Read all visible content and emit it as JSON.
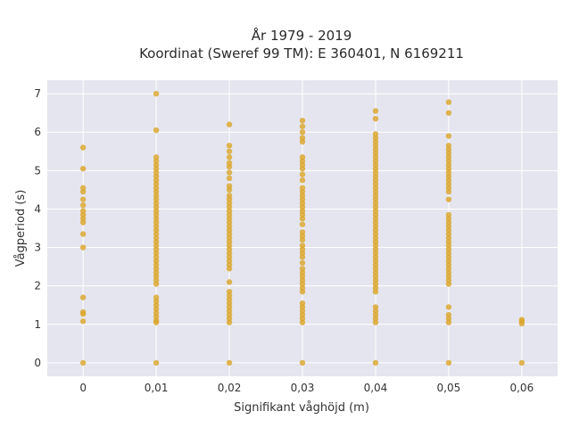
{
  "chart_data": {
    "type": "scatter",
    "title": [
      "År 1979 - 2019",
      "Koordinat (Sweref 99 TM): E 360401, N 6169211"
    ],
    "xlabel": "Signifikant våghöjd (m)",
    "ylabel": "Vågperiod (s)",
    "xlim": [
      -0.0049,
      0.0649
    ],
    "ylim": [
      -0.35,
      7.35
    ],
    "x_ticks": [
      0,
      0.01,
      0.02,
      0.03,
      0.04,
      0.05,
      0.06
    ],
    "x_tick_labels": [
      "0",
      "0,01",
      "0,02",
      "0,03",
      "0,04",
      "0,05",
      "0,06"
    ],
    "y_ticks": [
      0,
      1,
      2,
      3,
      4,
      5,
      6,
      7
    ],
    "y_tick_labels": [
      "0",
      "1",
      "2",
      "3",
      "4",
      "5",
      "6",
      "7"
    ],
    "grid": true,
    "background": "#e5e5ef",
    "marker_color": "#dba62b",
    "series": [
      {
        "points": [
          [
            0,
            0
          ],
          [
            0,
            1.08
          ],
          [
            0,
            1.27
          ],
          [
            0,
            1.32
          ],
          [
            0,
            1.7
          ],
          [
            0,
            3.0
          ],
          [
            0,
            3.35
          ],
          [
            0,
            3.65
          ],
          [
            0,
            3.75
          ],
          [
            0,
            3.85
          ],
          [
            0,
            3.95
          ],
          [
            0,
            4.1
          ],
          [
            0,
            4.25
          ],
          [
            0,
            4.45
          ],
          [
            0,
            4.55
          ],
          [
            0,
            5.05
          ],
          [
            0,
            5.6
          ],
          [
            0.01,
            0
          ],
          [
            0.01,
            1.05
          ],
          [
            0.01,
            1.1
          ],
          [
            0.01,
            1.2
          ],
          [
            0.01,
            1.3
          ],
          [
            0.01,
            1.4
          ],
          [
            0.01,
            1.5
          ],
          [
            0.01,
            1.6
          ],
          [
            0.01,
            1.7
          ],
          [
            0.01,
            2.05
          ],
          [
            0.01,
            2.15
          ],
          [
            0.01,
            2.25
          ],
          [
            0.01,
            2.35
          ],
          [
            0.01,
            2.45
          ],
          [
            0.01,
            2.55
          ],
          [
            0.01,
            2.65
          ],
          [
            0.01,
            2.75
          ],
          [
            0.01,
            2.85
          ],
          [
            0.01,
            2.95
          ],
          [
            0.01,
            3.05
          ],
          [
            0.01,
            3.15
          ],
          [
            0.01,
            3.25
          ],
          [
            0.01,
            3.35
          ],
          [
            0.01,
            3.45
          ],
          [
            0.01,
            3.55
          ],
          [
            0.01,
            3.65
          ],
          [
            0.01,
            3.75
          ],
          [
            0.01,
            3.85
          ],
          [
            0.01,
            3.95
          ],
          [
            0.01,
            4.05
          ],
          [
            0.01,
            4.15
          ],
          [
            0.01,
            4.25
          ],
          [
            0.01,
            4.35
          ],
          [
            0.01,
            4.45
          ],
          [
            0.01,
            4.55
          ],
          [
            0.01,
            4.65
          ],
          [
            0.01,
            4.75
          ],
          [
            0.01,
            4.85
          ],
          [
            0.01,
            4.95
          ],
          [
            0.01,
            5.05
          ],
          [
            0.01,
            5.15
          ],
          [
            0.01,
            5.25
          ],
          [
            0.01,
            5.35
          ],
          [
            0.01,
            6.05
          ],
          [
            0.01,
            7.0
          ],
          [
            0.02,
            0
          ],
          [
            0.02,
            1.05
          ],
          [
            0.02,
            1.15
          ],
          [
            0.02,
            1.25
          ],
          [
            0.02,
            1.35
          ],
          [
            0.02,
            1.45
          ],
          [
            0.02,
            1.55
          ],
          [
            0.02,
            1.65
          ],
          [
            0.02,
            1.75
          ],
          [
            0.02,
            1.85
          ],
          [
            0.02,
            2.1
          ],
          [
            0.02,
            2.45
          ],
          [
            0.02,
            2.55
          ],
          [
            0.02,
            2.65
          ],
          [
            0.02,
            2.75
          ],
          [
            0.02,
            2.85
          ],
          [
            0.02,
            2.95
          ],
          [
            0.02,
            3.05
          ],
          [
            0.02,
            3.15
          ],
          [
            0.02,
            3.25
          ],
          [
            0.02,
            3.35
          ],
          [
            0.02,
            3.45
          ],
          [
            0.02,
            3.55
          ],
          [
            0.02,
            3.65
          ],
          [
            0.02,
            3.75
          ],
          [
            0.02,
            3.85
          ],
          [
            0.02,
            3.95
          ],
          [
            0.02,
            4.05
          ],
          [
            0.02,
            4.15
          ],
          [
            0.02,
            4.25
          ],
          [
            0.02,
            4.35
          ],
          [
            0.02,
            4.5
          ],
          [
            0.02,
            4.6
          ],
          [
            0.02,
            4.8
          ],
          [
            0.02,
            4.95
          ],
          [
            0.02,
            5.1
          ],
          [
            0.02,
            5.2
          ],
          [
            0.02,
            5.35
          ],
          [
            0.02,
            5.5
          ],
          [
            0.02,
            5.65
          ],
          [
            0.02,
            6.2
          ],
          [
            0.03,
            0
          ],
          [
            0.03,
            1.05
          ],
          [
            0.03,
            1.15
          ],
          [
            0.03,
            1.25
          ],
          [
            0.03,
            1.35
          ],
          [
            0.03,
            1.45
          ],
          [
            0.03,
            1.55
          ],
          [
            0.03,
            1.85
          ],
          [
            0.03,
            1.95
          ],
          [
            0.03,
            2.05
          ],
          [
            0.03,
            2.15
          ],
          [
            0.03,
            2.25
          ],
          [
            0.03,
            2.35
          ],
          [
            0.03,
            2.45
          ],
          [
            0.03,
            2.6
          ],
          [
            0.03,
            2.75
          ],
          [
            0.03,
            2.85
          ],
          [
            0.03,
            2.95
          ],
          [
            0.03,
            3.05
          ],
          [
            0.03,
            3.2
          ],
          [
            0.03,
            3.3
          ],
          [
            0.03,
            3.4
          ],
          [
            0.03,
            3.6
          ],
          [
            0.03,
            3.75
          ],
          [
            0.03,
            3.85
          ],
          [
            0.03,
            3.95
          ],
          [
            0.03,
            4.05
          ],
          [
            0.03,
            4.15
          ],
          [
            0.03,
            4.25
          ],
          [
            0.03,
            4.35
          ],
          [
            0.03,
            4.45
          ],
          [
            0.03,
            4.55
          ],
          [
            0.03,
            4.75
          ],
          [
            0.03,
            4.9
          ],
          [
            0.03,
            5.05
          ],
          [
            0.03,
            5.15
          ],
          [
            0.03,
            5.25
          ],
          [
            0.03,
            5.35
          ],
          [
            0.03,
            5.75
          ],
          [
            0.03,
            5.85
          ],
          [
            0.03,
            6.0
          ],
          [
            0.03,
            6.15
          ],
          [
            0.03,
            6.3
          ],
          [
            0.04,
            0
          ],
          [
            0.04,
            1.05
          ],
          [
            0.04,
            1.15
          ],
          [
            0.04,
            1.25
          ],
          [
            0.04,
            1.35
          ],
          [
            0.04,
            1.45
          ],
          [
            0.04,
            1.85
          ],
          [
            0.04,
            1.95
          ],
          [
            0.04,
            2.05
          ],
          [
            0.04,
            2.15
          ],
          [
            0.04,
            2.25
          ],
          [
            0.04,
            2.35
          ],
          [
            0.04,
            2.45
          ],
          [
            0.04,
            2.55
          ],
          [
            0.04,
            2.65
          ],
          [
            0.04,
            2.75
          ],
          [
            0.04,
            2.85
          ],
          [
            0.04,
            2.95
          ],
          [
            0.04,
            3.05
          ],
          [
            0.04,
            3.15
          ],
          [
            0.04,
            3.25
          ],
          [
            0.04,
            3.35
          ],
          [
            0.04,
            3.45
          ],
          [
            0.04,
            3.55
          ],
          [
            0.04,
            3.65
          ],
          [
            0.04,
            3.75
          ],
          [
            0.04,
            3.85
          ],
          [
            0.04,
            3.95
          ],
          [
            0.04,
            4.05
          ],
          [
            0.04,
            4.15
          ],
          [
            0.04,
            4.25
          ],
          [
            0.04,
            4.35
          ],
          [
            0.04,
            4.45
          ],
          [
            0.04,
            4.55
          ],
          [
            0.04,
            4.65
          ],
          [
            0.04,
            4.75
          ],
          [
            0.04,
            4.85
          ],
          [
            0.04,
            4.95
          ],
          [
            0.04,
            5.05
          ],
          [
            0.04,
            5.15
          ],
          [
            0.04,
            5.25
          ],
          [
            0.04,
            5.35
          ],
          [
            0.04,
            5.45
          ],
          [
            0.04,
            5.55
          ],
          [
            0.04,
            5.65
          ],
          [
            0.04,
            5.75
          ],
          [
            0.04,
            5.85
          ],
          [
            0.04,
            5.95
          ],
          [
            0.04,
            6.35
          ],
          [
            0.04,
            6.55
          ],
          [
            0.05,
            0
          ],
          [
            0.05,
            1.05
          ],
          [
            0.05,
            1.15
          ],
          [
            0.05,
            1.25
          ],
          [
            0.05,
            1.45
          ],
          [
            0.05,
            2.05
          ],
          [
            0.05,
            2.15
          ],
          [
            0.05,
            2.25
          ],
          [
            0.05,
            2.35
          ],
          [
            0.05,
            2.45
          ],
          [
            0.05,
            2.55
          ],
          [
            0.05,
            2.65
          ],
          [
            0.05,
            2.75
          ],
          [
            0.05,
            2.85
          ],
          [
            0.05,
            2.95
          ],
          [
            0.05,
            3.05
          ],
          [
            0.05,
            3.15
          ],
          [
            0.05,
            3.25
          ],
          [
            0.05,
            3.35
          ],
          [
            0.05,
            3.45
          ],
          [
            0.05,
            3.55
          ],
          [
            0.05,
            3.65
          ],
          [
            0.05,
            3.75
          ],
          [
            0.05,
            3.85
          ],
          [
            0.05,
            4.25
          ],
          [
            0.05,
            4.45
          ],
          [
            0.05,
            4.55
          ],
          [
            0.05,
            4.65
          ],
          [
            0.05,
            4.75
          ],
          [
            0.05,
            4.85
          ],
          [
            0.05,
            4.95
          ],
          [
            0.05,
            5.05
          ],
          [
            0.05,
            5.15
          ],
          [
            0.05,
            5.25
          ],
          [
            0.05,
            5.35
          ],
          [
            0.05,
            5.45
          ],
          [
            0.05,
            5.55
          ],
          [
            0.05,
            5.65
          ],
          [
            0.05,
            5.9
          ],
          [
            0.05,
            6.5
          ],
          [
            0.05,
            6.78
          ],
          [
            0.06,
            0
          ],
          [
            0.06,
            1.02
          ],
          [
            0.06,
            1.08
          ],
          [
            0.06,
            1.12
          ]
        ]
      }
    ]
  }
}
